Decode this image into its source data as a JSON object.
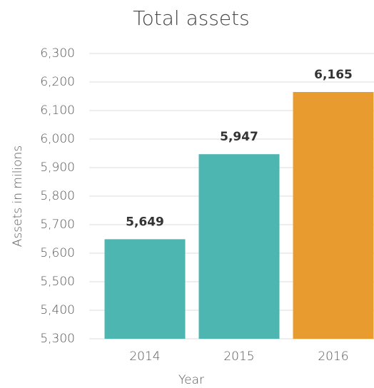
{
  "chart_data": {
    "type": "bar",
    "title": "Total assets",
    "x_label": "Year",
    "y_label": "Assets in milions",
    "categories": [
      "2014",
      "2015",
      "2016"
    ],
    "values": [
      5649,
      5947,
      6165
    ],
    "value_labels": [
      "5,649",
      "5,947",
      "6,165"
    ],
    "colors": [
      "#4db6b1",
      "#4db6b1",
      "#e89b2f"
    ],
    "ylim": [
      5300,
      6300
    ],
    "yticks": [
      {
        "value": 5300,
        "label": "5,300"
      },
      {
        "value": 5400,
        "label": "5,400"
      },
      {
        "value": 5500,
        "label": "5,500"
      },
      {
        "value": 5600,
        "label": "5,600"
      },
      {
        "value": 5700,
        "label": "5,700"
      },
      {
        "value": 5800,
        "label": "5,800"
      },
      {
        "value": 5900,
        "label": "5,900"
      },
      {
        "value": 6000,
        "label": "6,000"
      },
      {
        "value": 6100,
        "label": "6,100"
      },
      {
        "value": 6200,
        "label": "6,200"
      },
      {
        "value": 6300,
        "label": "6,300"
      }
    ],
    "grid": true
  }
}
